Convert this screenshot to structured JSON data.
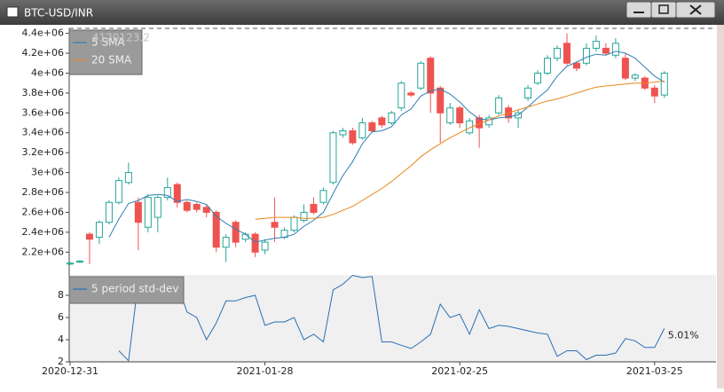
{
  "window_title": "BTC-USD/INR",
  "chart_data": [
    {
      "type": "candlestick",
      "value_readout": "4120123.2",
      "up_color": "#26a69a",
      "down_color": "#ef5350",
      "open": [
        2080000.0,
        2100000.0,
        2380000.0,
        2350000.0,
        2500000.0,
        2700000.0,
        2900000.0,
        2700000.0,
        2450000.0,
        2550000.0,
        2750000.0,
        2880000.0,
        2700000.0,
        2680000.0,
        2650000.0,
        2600000.0,
        2250000.0,
        2500000.0,
        2330000.0,
        2380000.0,
        2220000.0,
        2500000.0,
        2350000.0,
        2420000.0,
        2520000.0,
        2680000.0,
        2700000.0,
        2900000.0,
        3380000.0,
        3420000.0,
        3350000.0,
        3500000.0,
        3550000.0,
        3500000.0,
        3650000.0,
        3800000.0,
        3850000.0,
        4150000.0,
        3850000.0,
        3500000.0,
        3650000.0,
        3400000.0,
        3550000.0,
        3480000.0,
        3600000.0,
        3650000.0,
        3550000.0,
        3750000.0,
        3900000.0,
        4000000.0,
        4150000.0,
        4300000.0,
        4100000.0,
        4100000.0,
        4250000.0,
        4250000.0,
        4180000.0,
        4150000.0,
        3950000.0,
        3950000.0,
        3850000.0,
        3780000.0
      ],
      "high": [
        2100000.0,
        2120000.0,
        2400000.0,
        2520000.0,
        2720000.0,
        2950000.0,
        3100000.0,
        2750000.0,
        2780000.0,
        2770000.0,
        2950000.0,
        2900000.0,
        2720000.0,
        2700000.0,
        2680000.0,
        2620000.0,
        2380000.0,
        2520000.0,
        2400000.0,
        2400000.0,
        2330000.0,
        2750000.0,
        2450000.0,
        2570000.0,
        2680000.0,
        2750000.0,
        2850000.0,
        3420000.0,
        3450000.0,
        3450000.0,
        3550000.0,
        3520000.0,
        3570000.0,
        3620000.0,
        3920000.0,
        3820000.0,
        4120000.0,
        4170000.0,
        3870000.0,
        3700000.0,
        3670000.0,
        3550000.0,
        3580000.0,
        3580000.0,
        3780000.0,
        3680000.0,
        3630000.0,
        3880000.0,
        4030000.0,
        4180000.0,
        4280000.0,
        4400000.0,
        4120000.0,
        4300000.0,
        4380000.0,
        4300000.0,
        4350000.0,
        4200000.0,
        4000000.0,
        3970000.0,
        3880000.0,
        4020000.0
      ],
      "low": [
        2070000.0,
        2090000.0,
        2080000.0,
        2280000.0,
        2480000.0,
        2680000.0,
        2880000.0,
        2220000.0,
        2400000.0,
        2400000.0,
        2720000.0,
        2650000.0,
        2600000.0,
        2600000.0,
        2550000.0,
        2200000.0,
        2100000.0,
        2250000.0,
        2300000.0,
        2150000.0,
        2180000.0,
        2300000.0,
        2330000.0,
        2400000.0,
        2500000.0,
        2580000.0,
        2680000.0,
        2880000.0,
        3350000.0,
        3280000.0,
        3330000.0,
        3400000.0,
        3450000.0,
        3480000.0,
        3620000.0,
        3760000.0,
        3830000.0,
        3600000.0,
        3300000.0,
        3480000.0,
        3450000.0,
        3380000.0,
        3250000.0,
        3450000.0,
        3580000.0,
        3500000.0,
        3450000.0,
        3720000.0,
        3880000.0,
        3980000.0,
        4120000.0,
        4080000.0,
        4020000.0,
        4080000.0,
        4220000.0,
        4180000.0,
        4150000.0,
        3930000.0,
        3920000.0,
        3830000.0,
        3700000.0,
        3750000.0
      ],
      "close": [
        2090000.0,
        2110000.0,
        2330000.0,
        2500000.0,
        2700000.0,
        2920000.0,
        3000000.0,
        2500000.0,
        2750000.0,
        2750000.0,
        2850000.0,
        2700000.0,
        2620000.0,
        2630000.0,
        2600000.0,
        2250000.0,
        2350000.0,
        2300000.0,
        2380000.0,
        2200000.0,
        2300000.0,
        2450000.0,
        2420000.0,
        2550000.0,
        2600000.0,
        2600000.0,
        2820000.0,
        3400000.0,
        3420000.0,
        3300000.0,
        3500000.0,
        3420000.0,
        3480000.0,
        3600000.0,
        3900000.0,
        3780000.0,
        4100000.0,
        3800000.0,
        3600000.0,
        3650000.0,
        3500000.0,
        3520000.0,
        3450000.0,
        3550000.0,
        3750000.0,
        3550000.0,
        3600000.0,
        3850000.0,
        4000000.0,
        4150000.0,
        4250000.0,
        4100000.0,
        4050000.0,
        4250000.0,
        4320000.0,
        4200000.0,
        4300000.0,
        3950000.0,
        3980000.0,
        3850000.0,
        3770000.0,
        4000000.0
      ],
      "lines": [
        {
          "name": "5 SMA",
          "color": "#2f7fb5",
          "values": [
            null,
            null,
            null,
            null,
            2350000.0,
            2530000.0,
            2690000.0,
            2720000.0,
            2770000.0,
            2780000.0,
            2770000.0,
            2710000.0,
            2730000.0,
            2710000.0,
            2680000.0,
            2560000.0,
            2490000.0,
            2430000.0,
            2380000.0,
            2300000.0,
            2320000.0,
            2340000.0,
            2350000.0,
            2380000.0,
            2460000.0,
            2520000.0,
            2600000.0,
            2790000.0,
            2970000.0,
            3110000.0,
            3290000.0,
            3410000.0,
            3420000.0,
            3460000.0,
            3580000.0,
            3640000.0,
            3770000.0,
            3820000.0,
            3840000.0,
            3790000.0,
            3710000.0,
            3610000.0,
            3540000.0,
            3530000.0,
            3550000.0,
            3560000.0,
            3580000.0,
            3660000.0,
            3750000.0,
            3830000.0,
            3970000.0,
            4070000.0,
            4110000.0,
            4160000.0,
            4190000.0,
            4180000.0,
            4220000.0,
            4200000.0,
            4150000.0,
            4060000.0,
            3970000.0,
            3910000.0
          ]
        },
        {
          "name": "20 SMA",
          "color": "#e8861a",
          "values": [
            null,
            null,
            null,
            null,
            null,
            null,
            null,
            null,
            null,
            null,
            null,
            null,
            null,
            null,
            null,
            null,
            null,
            null,
            null,
            2530000.0,
            2540000.0,
            2550000.0,
            2550000.0,
            2550000.0,
            2540000.0,
            2540000.0,
            2550000.0,
            2580000.0,
            2620000.0,
            2660000.0,
            2720000.0,
            2780000.0,
            2840000.0,
            2910000.0,
            2990000.0,
            3070000.0,
            3160000.0,
            3230000.0,
            3290000.0,
            3350000.0,
            3400000.0,
            3450000.0,
            3490000.0,
            3530000.0,
            3570000.0,
            3600000.0,
            3630000.0,
            3660000.0,
            3690000.0,
            3720000.0,
            3740000.0,
            3770000.0,
            3800000.0,
            3830000.0,
            3860000.0,
            3870000.0,
            3880000.0,
            3890000.0,
            3900000.0,
            3900000.0,
            3910000.0,
            3920000.0
          ]
        }
      ],
      "ylim": [
        2060000.0,
        4450000.0
      ],
      "yticks": [
        {
          "value": 2200000.0,
          "label": "2.2e+06"
        },
        {
          "value": 2400000.0,
          "label": "2.4e+06"
        },
        {
          "value": 2600000.0,
          "label": "2.6e+06"
        },
        {
          "value": 2800000.0,
          "label": "2.8e+06"
        },
        {
          "value": 3000000.0,
          "label": "3e+06"
        },
        {
          "value": 3200000.0,
          "label": "3.2e+06"
        },
        {
          "value": 3400000.0,
          "label": "3.4e+06"
        },
        {
          "value": 3600000.0,
          "label": "3.6e+06"
        },
        {
          "value": 3800000.0,
          "label": "3.8e+06"
        },
        {
          "value": 4000000.0,
          "label": "4e+06"
        },
        {
          "value": 4200000.0,
          "label": "4.2e+06"
        },
        {
          "value": 4400000.0,
          "label": "4.4e+06"
        }
      ]
    },
    {
      "type": "line",
      "categories": [
        "2020-12-31",
        null,
        null,
        null,
        null,
        null,
        null,
        null,
        null,
        null,
        null,
        null,
        null,
        null,
        null,
        null,
        null,
        null,
        null,
        null,
        "2021-01-28",
        null,
        null,
        null,
        null,
        null,
        null,
        null,
        null,
        null,
        null,
        null,
        null,
        null,
        null,
        null,
        null,
        null,
        null,
        null,
        "2021-02-25",
        null,
        null,
        null,
        null,
        null,
        null,
        null,
        null,
        null,
        null,
        null,
        null,
        null,
        null,
        null,
        null,
        null,
        null,
        null,
        "2021-03-25",
        null
      ],
      "series": [
        {
          "name": "5 period std-dev",
          "color": "#2a6fb3",
          "values": [
            null,
            null,
            null,
            null,
            null,
            3.0,
            2.1,
            9.3,
            9.5,
            9.4,
            9.3,
            9.0,
            6.5,
            6.0,
            4.0,
            5.5,
            7.5,
            7.5,
            7.8,
            8.0,
            5.3,
            5.6,
            5.6,
            6.0,
            4.0,
            4.5,
            3.8,
            8.5,
            9.0,
            9.8,
            9.6,
            9.7,
            3.8,
            3.8,
            3.5,
            3.2,
            3.8,
            4.5,
            7.2,
            6.0,
            6.3,
            4.5,
            6.7,
            5.0,
            5.3,
            5.2,
            5.0,
            4.8,
            4.6,
            4.5,
            2.5,
            3.0,
            3.0,
            2.2,
            2.6,
            2.6,
            2.8,
            4.1,
            3.9,
            3.3,
            3.3,
            5.01
          ]
        }
      ],
      "last_label": "5.01%",
      "ylim": [
        2,
        9.84
      ],
      "yticks": [
        2,
        4,
        6,
        8
      ]
    }
  ]
}
